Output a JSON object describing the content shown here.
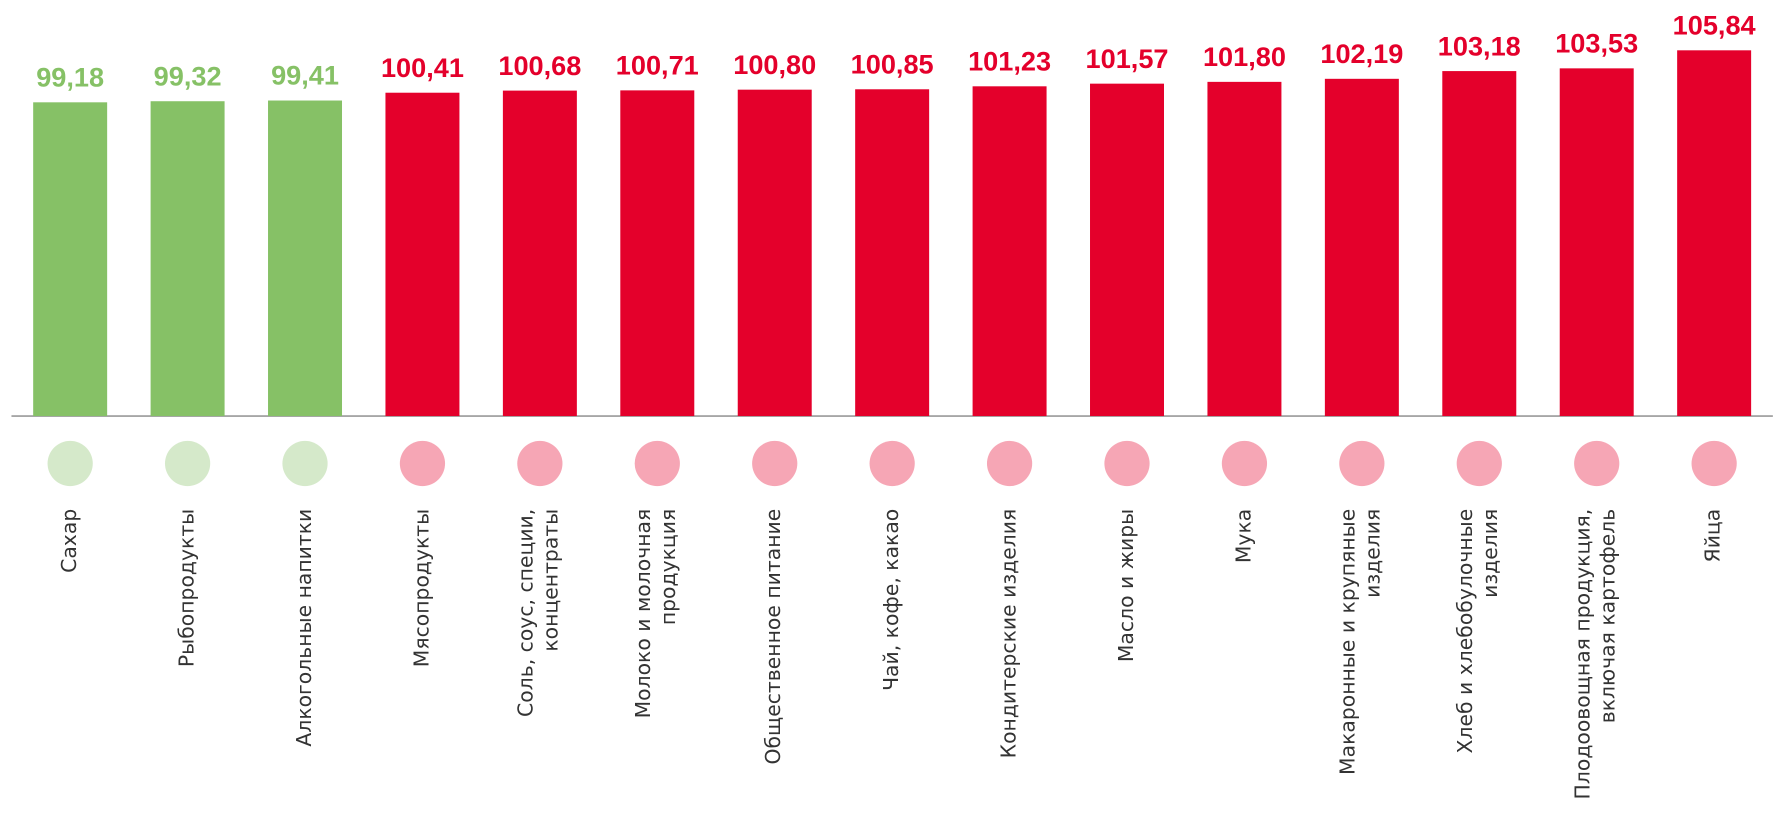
{
  "chart_data": {
    "type": "bar",
    "categories": [
      "Сахар",
      "Рыбопродукты",
      "Алкогольные напитки",
      "Мясопродукты",
      "Соль, соус, специи,\nконцентраты",
      "Молоко и молочная\nпродукция",
      "Общественное питание",
      "Чай, кофе, какао",
      "Кондитерские изделия",
      "Масло и жиры",
      "Мука",
      "Макаронные и крупяные\nизделия",
      "Хлеб и хлебобулочные\nизделия",
      "Плодоовощная продукция,\nвключая картофель",
      "Яйца"
    ],
    "values": [
      99.18,
      99.32,
      99.41,
      100.41,
      100.68,
      100.71,
      100.8,
      100.85,
      101.23,
      101.57,
      101.8,
      102.19,
      103.18,
      103.53,
      105.84
    ],
    "value_labels": [
      "99,18",
      "99,32",
      "99,41",
      "100,41",
      "100,68",
      "100,71",
      "100,80",
      "100,85",
      "101,23",
      "101,57",
      "101,80",
      "102,19",
      "103,18",
      "103,53",
      "105,84"
    ],
    "colors": [
      "#86c166",
      "#86c166",
      "#86c166",
      "#e4002b",
      "#e4002b",
      "#e4002b",
      "#e4002b",
      "#e4002b",
      "#e4002b",
      "#e4002b",
      "#e4002b",
      "#e4002b",
      "#e4002b",
      "#e4002b",
      "#e4002b"
    ],
    "ylim": [
      59,
      106
    ]
  }
}
